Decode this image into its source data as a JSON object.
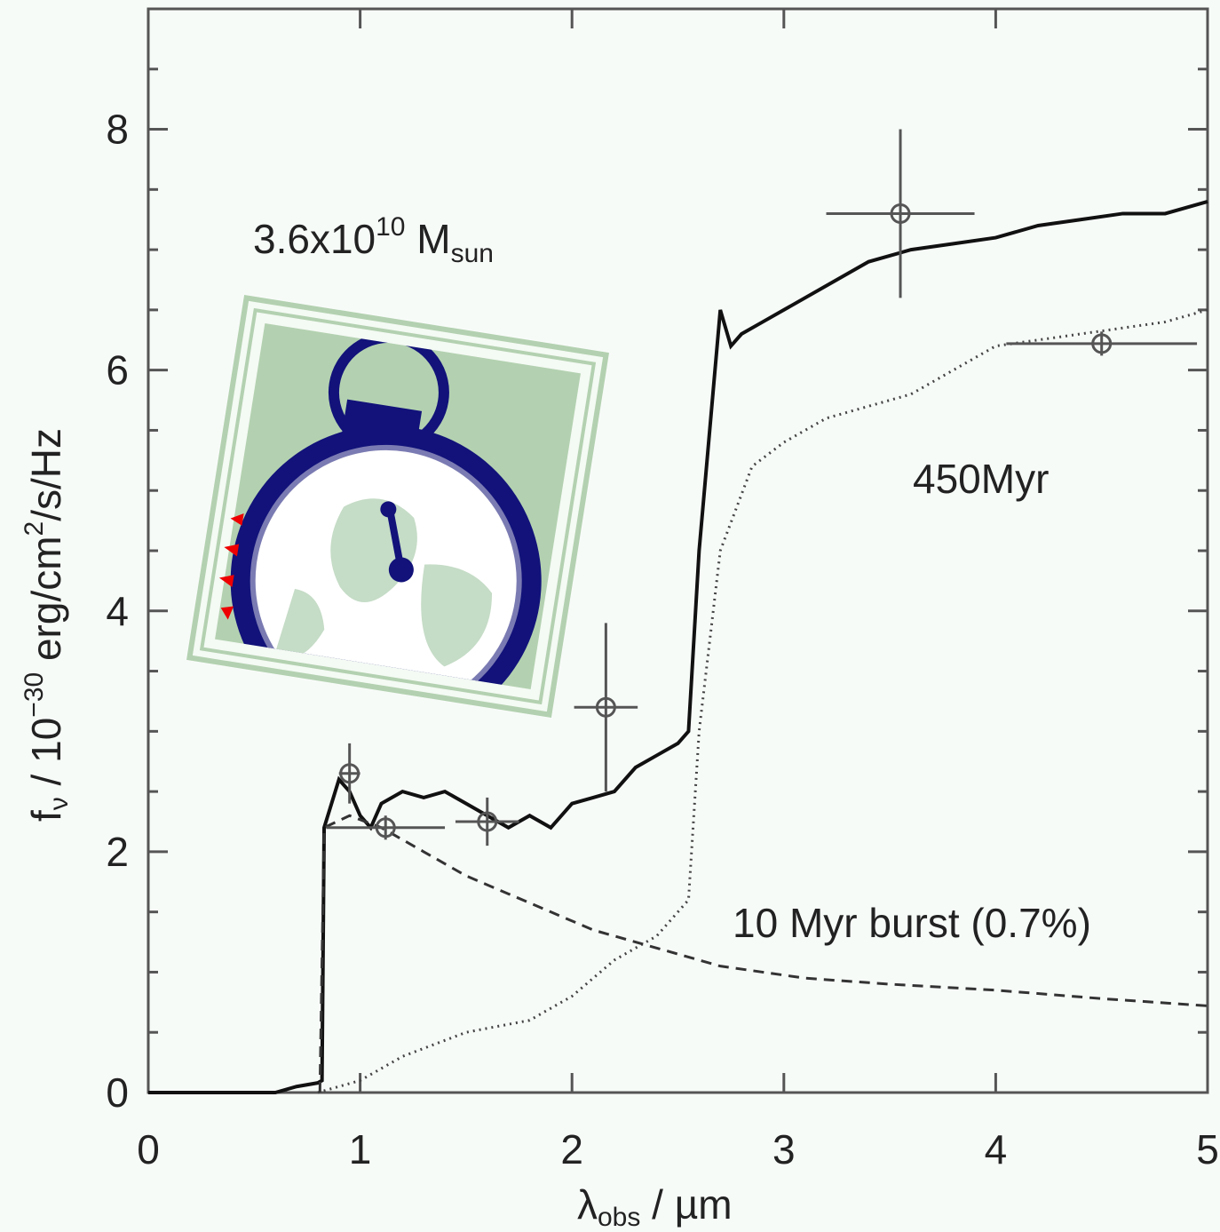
{
  "chart_data": {
    "type": "line",
    "xlabel": [
      "λ",
      "obs",
      " / µm"
    ],
    "ylabel": [
      "f",
      "ν",
      " / 10",
      "−30",
      " erg/cm",
      "2",
      "/s/Hz"
    ],
    "annotations": {
      "mass": [
        "3.6x10",
        "10",
        " M",
        "sun"
      ],
      "old": "450Myr",
      "burst": "10 Myr burst (0.7%)"
    },
    "xlim": [
      0,
      5
    ],
    "ylim": [
      0,
      9
    ],
    "xticks": [
      0,
      1,
      2,
      3,
      4,
      5
    ],
    "yticks": [
      0,
      2,
      4,
      6,
      8
    ],
    "yminor": [
      0.5,
      1,
      1.5,
      2.5,
      3,
      3.5,
      4.5,
      5,
      5.5,
      6.5,
      7,
      7.5,
      8.5
    ],
    "series": [
      {
        "color": "#111111",
        "style": "solid",
        "width": 4,
        "x": [
          0,
          0.6,
          0.7,
          0.8,
          0.82,
          0.83,
          0.9,
          0.95,
          1.0,
          1.05,
          1.1,
          1.2,
          1.3,
          1.4,
          1.5,
          1.6,
          1.7,
          1.8,
          1.9,
          2.0,
          2.1,
          2.2,
          2.3,
          2.4,
          2.5,
          2.55,
          2.6,
          2.65,
          2.7,
          2.75,
          2.8,
          2.9,
          3.0,
          3.2,
          3.4,
          3.6,
          3.8,
          4.0,
          4.2,
          4.4,
          4.6,
          4.8,
          5.0
        ],
        "values": [
          0,
          0,
          0.05,
          0.08,
          0.1,
          2.2,
          2.6,
          2.5,
          2.3,
          2.2,
          2.4,
          2.5,
          2.45,
          2.5,
          2.4,
          2.3,
          2.2,
          2.3,
          2.2,
          2.4,
          2.45,
          2.5,
          2.7,
          2.8,
          2.9,
          3.0,
          4.5,
          5.5,
          6.5,
          6.2,
          6.3,
          6.4,
          6.5,
          6.7,
          6.9,
          7.0,
          7.05,
          7.1,
          7.2,
          7.25,
          7.3,
          7.3,
          7.4
        ]
      },
      {
        "color": "#444444",
        "style": "dotted",
        "width": 3,
        "x": [
          0.8,
          1.0,
          1.2,
          1.5,
          1.8,
          2.0,
          2.2,
          2.4,
          2.55,
          2.6,
          2.7,
          2.85,
          3.0,
          3.2,
          3.4,
          3.6,
          3.8,
          4.0,
          4.2,
          4.4,
          4.6,
          4.8,
          5.0
        ],
        "values": [
          0,
          0.1,
          0.3,
          0.5,
          0.6,
          0.8,
          1.1,
          1.3,
          1.6,
          3.0,
          4.5,
          5.2,
          5.4,
          5.6,
          5.7,
          5.8,
          6.0,
          6.2,
          6.25,
          6.3,
          6.35,
          6.4,
          6.5
        ]
      },
      {
        "color": "#333333",
        "style": "dashed",
        "width": 3,
        "x": [
          0.81,
          0.83,
          0.95,
          1.1,
          1.3,
          1.5,
          1.7,
          1.9,
          2.1,
          2.3,
          2.5,
          2.7,
          2.9,
          3.1,
          3.5,
          4.0,
          4.5,
          5.0
        ],
        "values": [
          0,
          2.2,
          2.3,
          2.2,
          2.0,
          1.8,
          1.65,
          1.5,
          1.35,
          1.25,
          1.15,
          1.05,
          1.0,
          0.95,
          0.9,
          0.85,
          0.78,
          0.72
        ]
      }
    ],
    "points": {
      "color": "#555555",
      "x": [
        0.95,
        1.12,
        1.6,
        2.16,
        3.55,
        4.5
      ],
      "values": [
        2.65,
        2.2,
        2.25,
        3.2,
        7.3,
        6.22
      ],
      "xerr": [
        0.05,
        0.28,
        0.15,
        0.15,
        0.35,
        0.45
      ],
      "yerr": [
        0.25,
        0.1,
        0.2,
        0.7,
        0.7,
        0.1
      ]
    }
  }
}
